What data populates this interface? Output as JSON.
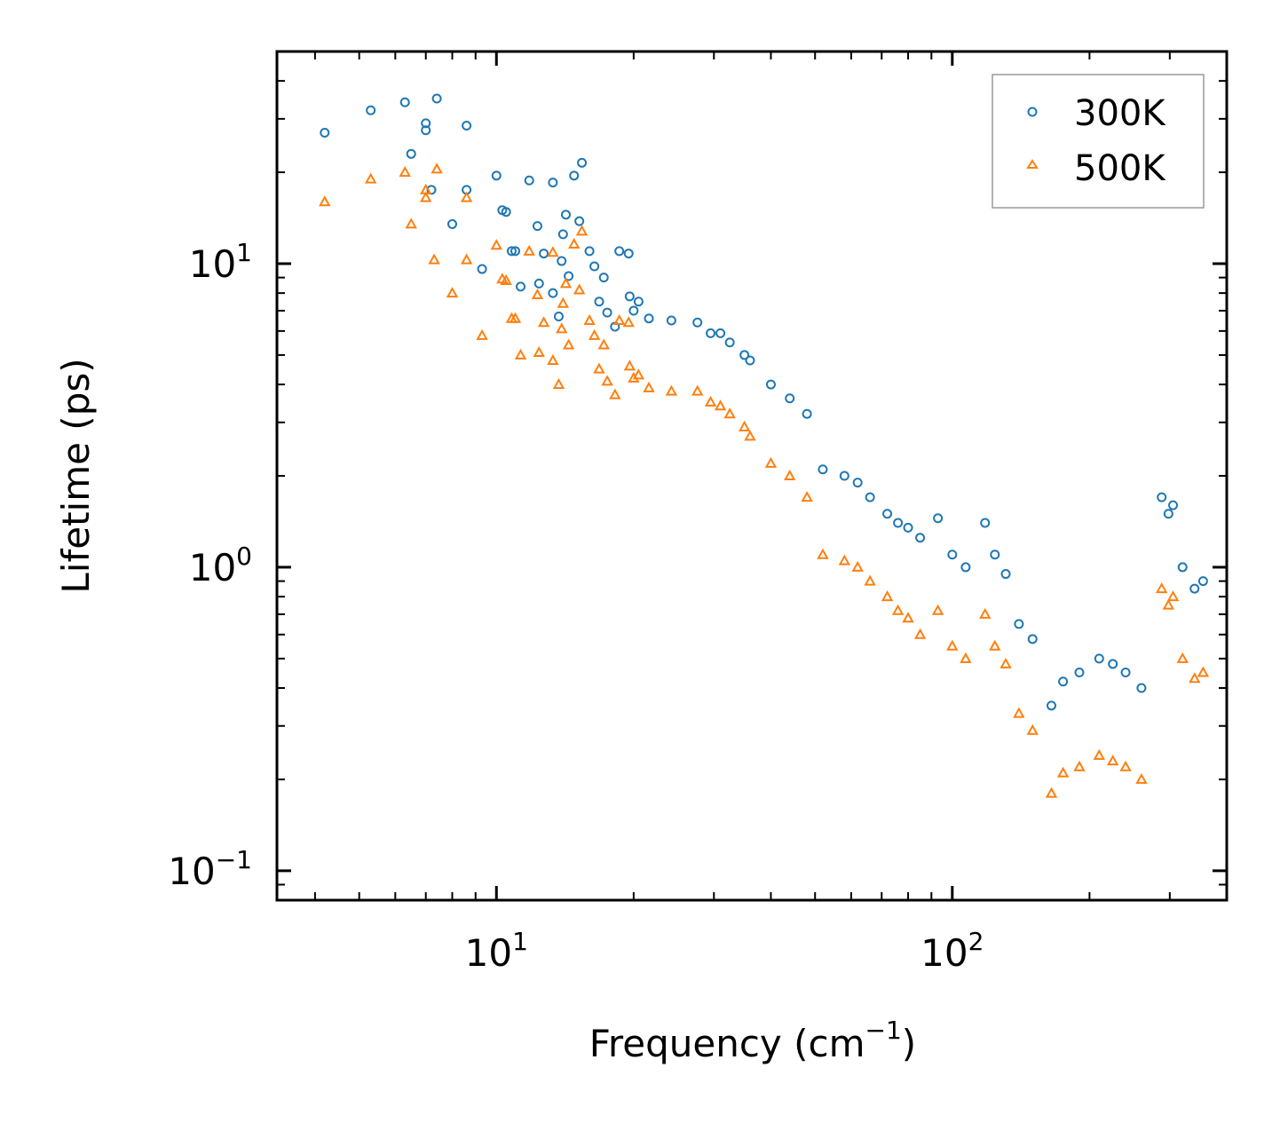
{
  "colors": {
    "series_300K": "#1f77b4",
    "series_500K": "#ff7f0e",
    "axis": "#000000",
    "legend_border": "#999999"
  },
  "chart_data": {
    "type": "scatter",
    "title": "",
    "xlabel": "Frequency (cm",
    "xlabel_exponent": "−1",
    "xlabel_close": ")",
    "ylabel": "Lifetime (ps)",
    "x_scale": "log",
    "y_scale": "log",
    "xlim": [
      3.3,
      400
    ],
    "ylim": [
      0.08,
      50
    ],
    "x_ticks": [
      {
        "value": 10,
        "base": "10",
        "exp": "1"
      },
      {
        "value": 100,
        "base": "10",
        "exp": "2"
      }
    ],
    "y_ticks": [
      {
        "value": 0.1,
        "base": "10",
        "exp": "−1"
      },
      {
        "value": 1,
        "base": "10",
        "exp": "0"
      },
      {
        "value": 10,
        "base": "10",
        "exp": "1"
      }
    ],
    "legend_position": "top-right",
    "series": [
      {
        "name": "300K",
        "marker": "circle",
        "color": "#1f77b4",
        "points": [
          [
            4.2,
            27
          ],
          [
            5.3,
            32
          ],
          [
            6.3,
            34
          ],
          [
            6.5,
            23
          ],
          [
            7.0,
            29
          ],
          [
            7.0,
            27.5
          ],
          [
            7.4,
            35
          ],
          [
            7.2,
            17.5
          ],
          [
            8.6,
            28.5
          ],
          [
            8.6,
            17.5
          ],
          [
            8.0,
            13.5
          ],
          [
            9.3,
            9.6
          ],
          [
            10.0,
            19.5
          ],
          [
            10.3,
            15
          ],
          [
            10.5,
            14.8
          ],
          [
            11.8,
            18.8
          ],
          [
            10.8,
            11
          ],
          [
            11.0,
            11
          ],
          [
            12.3,
            13.3
          ],
          [
            12.7,
            10.8
          ],
          [
            12.4,
            8.6
          ],
          [
            11.3,
            8.4
          ],
          [
            13.3,
            8
          ],
          [
            13.3,
            18.5
          ],
          [
            14.2,
            14.5
          ],
          [
            14.0,
            12.5
          ],
          [
            14.8,
            19.5
          ],
          [
            15.4,
            21.5
          ],
          [
            15.2,
            13.8
          ],
          [
            16.0,
            11
          ],
          [
            16.4,
            9.8
          ],
          [
            14.4,
            9.1
          ],
          [
            13.7,
            6.7
          ],
          [
            13.9,
            10.2
          ],
          [
            17.2,
            9.0
          ],
          [
            18.6,
            11
          ],
          [
            19.5,
            10.8
          ],
          [
            16.8,
            7.5
          ],
          [
            17.5,
            6.9
          ],
          [
            19.6,
            7.8
          ],
          [
            20.5,
            7.5
          ],
          [
            21.6,
            6.6
          ],
          [
            18.2,
            6.2
          ],
          [
            20.0,
            7.0
          ],
          [
            24.2,
            6.5
          ],
          [
            27.6,
            6.4
          ],
          [
            29.5,
            5.9
          ],
          [
            31.0,
            5.9
          ],
          [
            32.5,
            5.5
          ],
          [
            35.0,
            5.0
          ],
          [
            36.0,
            4.8
          ],
          [
            40.0,
            4.0
          ],
          [
            44.0,
            3.6
          ],
          [
            48.0,
            3.2
          ],
          [
            52.0,
            2.1
          ],
          [
            58.0,
            2.0
          ],
          [
            62.0,
            1.9
          ],
          [
            66.0,
            1.7
          ],
          [
            72.0,
            1.5
          ],
          [
            76.0,
            1.4
          ],
          [
            80.0,
            1.35
          ],
          [
            85.0,
            1.25
          ],
          [
            93.0,
            1.45
          ],
          [
            100.0,
            1.1
          ],
          [
            107.0,
            1.0
          ],
          [
            118.0,
            1.4
          ],
          [
            124.0,
            1.1
          ],
          [
            131.0,
            0.95
          ],
          [
            140.0,
            0.65
          ],
          [
            150.0,
            0.58
          ],
          [
            165.0,
            0.35
          ],
          [
            175.0,
            0.42
          ],
          [
            190.0,
            0.45
          ],
          [
            210.0,
            0.5
          ],
          [
            225.0,
            0.48
          ],
          [
            240.0,
            0.45
          ],
          [
            260.0,
            0.4
          ],
          [
            288.0,
            1.7
          ],
          [
            298.0,
            1.5
          ],
          [
            305.0,
            1.6
          ],
          [
            320.0,
            1.0
          ],
          [
            340.0,
            0.85
          ],
          [
            355.0,
            0.9
          ]
        ]
      },
      {
        "name": "500K",
        "marker": "triangle",
        "color": "#ff7f0e",
        "points": [
          [
            4.2,
            16
          ],
          [
            5.3,
            19
          ],
          [
            6.3,
            20
          ],
          [
            6.5,
            13.5
          ],
          [
            7.0,
            16.5
          ],
          [
            7.0,
            17.5
          ],
          [
            7.4,
            20.5
          ],
          [
            7.3,
            10.3
          ],
          [
            8.6,
            16.5
          ],
          [
            8.6,
            10.3
          ],
          [
            8.0,
            8.0
          ],
          [
            9.3,
            5.8
          ],
          [
            10.0,
            11.5
          ],
          [
            10.3,
            8.9
          ],
          [
            10.5,
            8.8
          ],
          [
            11.8,
            11
          ],
          [
            10.8,
            6.6
          ],
          [
            11.0,
            6.6
          ],
          [
            12.3,
            7.9
          ],
          [
            12.7,
            6.4
          ],
          [
            12.4,
            5.1
          ],
          [
            11.3,
            5.0
          ],
          [
            13.3,
            4.8
          ],
          [
            13.3,
            10.9
          ],
          [
            14.2,
            8.6
          ],
          [
            14.0,
            7.4
          ],
          [
            14.8,
            11.6
          ],
          [
            15.4,
            12.8
          ],
          [
            15.2,
            8.2
          ],
          [
            16.0,
            6.5
          ],
          [
            16.4,
            5.8
          ],
          [
            14.4,
            5.4
          ],
          [
            13.7,
            4.0
          ],
          [
            13.9,
            6.1
          ],
          [
            17.2,
            5.4
          ],
          [
            18.6,
            6.5
          ],
          [
            19.5,
            6.4
          ],
          [
            16.8,
            4.5
          ],
          [
            17.5,
            4.1
          ],
          [
            19.6,
            4.6
          ],
          [
            20.5,
            4.3
          ],
          [
            21.6,
            3.9
          ],
          [
            18.2,
            3.7
          ],
          [
            20.0,
            4.2
          ],
          [
            24.2,
            3.8
          ],
          [
            27.6,
            3.8
          ],
          [
            29.5,
            3.5
          ],
          [
            31.0,
            3.4
          ],
          [
            32.5,
            3.2
          ],
          [
            35.0,
            2.9
          ],
          [
            36.0,
            2.7
          ],
          [
            40.0,
            2.2
          ],
          [
            44.0,
            2.0
          ],
          [
            48.0,
            1.7
          ],
          [
            52.0,
            1.1
          ],
          [
            58.0,
            1.05
          ],
          [
            62.0,
            1.0
          ],
          [
            66.0,
            0.9
          ],
          [
            72.0,
            0.8
          ],
          [
            76.0,
            0.72
          ],
          [
            80.0,
            0.68
          ],
          [
            85.0,
            0.6
          ],
          [
            93.0,
            0.72
          ],
          [
            100.0,
            0.55
          ],
          [
            107.0,
            0.5
          ],
          [
            118.0,
            0.7
          ],
          [
            124.0,
            0.55
          ],
          [
            131.0,
            0.48
          ],
          [
            140.0,
            0.33
          ],
          [
            150.0,
            0.29
          ],
          [
            165.0,
            0.18
          ],
          [
            175.0,
            0.21
          ],
          [
            190.0,
            0.22
          ],
          [
            210.0,
            0.24
          ],
          [
            225.0,
            0.23
          ],
          [
            240.0,
            0.22
          ],
          [
            260.0,
            0.2
          ],
          [
            288.0,
            0.85
          ],
          [
            298.0,
            0.75
          ],
          [
            305.0,
            0.8
          ],
          [
            320.0,
            0.5
          ],
          [
            340.0,
            0.43
          ],
          [
            355.0,
            0.45
          ]
        ]
      }
    ],
    "legend": [
      "300K",
      "500K"
    ]
  }
}
